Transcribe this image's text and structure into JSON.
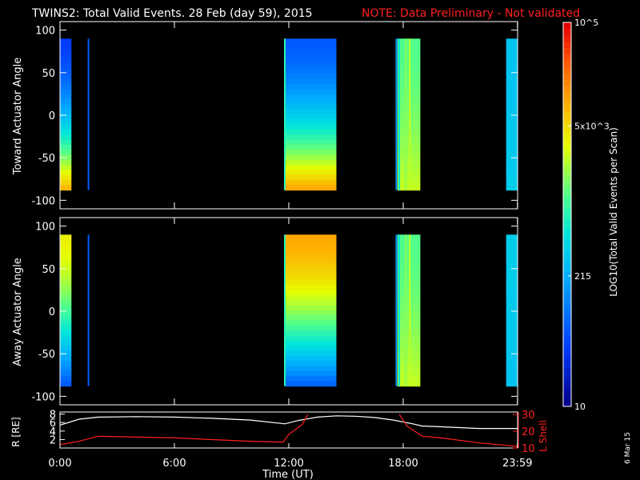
{
  "title": "TWINS2: Total Valid Events. 28 Feb (day  59), 2015",
  "note": "NOTE: Data Preliminary - Not validated",
  "date_stamp": "6 Mar 15",
  "colors": {
    "note": "#ff2020",
    "bg": "#000000",
    "axes": "#ffffff",
    "l_shell": "#ff2020",
    "r_line": "#ffffff"
  },
  "chart_data": [
    {
      "type": "heatmap",
      "ylabel": "Toward Actuator Angle",
      "ylim": [
        -110,
        110
      ],
      "yticks": [
        100,
        50,
        0,
        -50,
        -100
      ],
      "xlim": [
        0,
        24
      ],
      "angle_range": [
        -88,
        90
      ],
      "blocks": [
        {
          "start": 0.0,
          "end": 0.6,
          "top_level": 0.15,
          "bottom_level": 0.78
        },
        {
          "start": 11.8,
          "end": 14.5,
          "top_level": 0.2,
          "bottom_level": 0.8
        },
        {
          "start": 17.7,
          "end": 18.9,
          "top_level": 0.55,
          "bottom_level": 0.65
        },
        {
          "start": 23.4,
          "end": 23.99,
          "top_level": 0.38,
          "bottom_level": 0.4
        }
      ]
    },
    {
      "type": "heatmap",
      "ylabel": "Away Actuator Angle",
      "ylim": [
        -110,
        110
      ],
      "yticks": [
        100,
        50,
        0,
        -50,
        -100
      ],
      "xlim": [
        0,
        24
      ],
      "angle_range": [
        -88,
        90
      ],
      "blocks": [
        {
          "start": 0.0,
          "end": 0.6,
          "top_level": 0.7,
          "bottom_level": 0.2
        },
        {
          "start": 11.8,
          "end": 14.5,
          "top_level": 0.8,
          "bottom_level": 0.22
        },
        {
          "start": 17.7,
          "end": 18.9,
          "top_level": 0.55,
          "bottom_level": 0.65
        },
        {
          "start": 23.4,
          "end": 23.99,
          "top_level": 0.4,
          "bottom_level": 0.38
        }
      ]
    },
    {
      "type": "line",
      "ylabel_left": "R [RE]",
      "ylabel_right": "L Shell",
      "left_ticks": [
        2,
        4,
        6,
        8
      ],
      "right_ticks": [
        10,
        20,
        30
      ],
      "xlabel": "Time (UT)",
      "xticks": [
        "0:00",
        "6:00",
        "12:00",
        "18:00",
        "23:59"
      ],
      "xtick_hours": [
        0,
        6,
        12,
        18,
        23.99
      ],
      "series": [
        {
          "axis": "left",
          "x": [
            0,
            1,
            2,
            4,
            6,
            8,
            10,
            11.8,
            12.5,
            13.5,
            14.5,
            15.5,
            16.5,
            17.5,
            18.5,
            19,
            20,
            22,
            24
          ],
          "y": [
            5.4,
            6.8,
            7.3,
            7.4,
            7.3,
            7.0,
            6.6,
            5.7,
            6.5,
            7.3,
            7.6,
            7.5,
            7.2,
            6.6,
            5.7,
            5.2,
            5.0,
            4.6,
            4.6
          ]
        },
        {
          "axis": "right",
          "x": [
            0,
            1,
            2,
            6,
            10,
            11.7,
            12,
            12.7,
            13.0
          ],
          "y": [
            12,
            14,
            17,
            16,
            14,
            13.5,
            18,
            24,
            30
          ]
        },
        {
          "axis": "right",
          "x": [
            17.8,
            18.2,
            19,
            20,
            22,
            23.99
          ],
          "y": [
            30,
            23,
            17,
            16,
            13,
            11
          ]
        }
      ]
    }
  ],
  "colorbar": {
    "label": "LOG10(Total Valid Events per Scan)",
    "labels": [
      "10^5",
      "5x10^3",
      "215",
      "10"
    ],
    "label_fracs": [
      1.0,
      0.73,
      0.34,
      0.0
    ]
  },
  "ui": {
    "panel1_ylabel": "Toward Actuator Angle",
    "panel2_ylabel": "Away Actuator Angle",
    "r_label": "R [RE]",
    "lshell_label": "L Shell",
    "xlabel": "Time (UT)"
  }
}
